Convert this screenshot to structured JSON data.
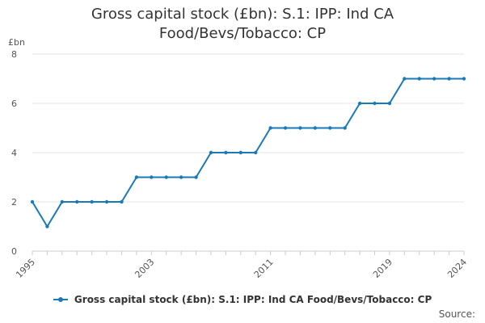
{
  "chart_data": {
    "type": "line",
    "title_lines": [
      "Gross capital stock (£bn): S.1: IPP: Ind CA",
      "Food/Bevs/Tobacco: CP"
    ],
    "ylabel": "£bn",
    "xlabel": "",
    "ylim": [
      0,
      8
    ],
    "yticks": [
      0,
      2,
      4,
      6,
      8
    ],
    "xlim": [
      1995,
      2024
    ],
    "xtick_labels": [
      "1995",
      "2003",
      "2011",
      "2019",
      "2024"
    ],
    "grid": true,
    "legend_position": "bottom",
    "series": [
      {
        "name": "Gross capital stock (£bn): S.1: IPP: Ind CA Food/Bevs/Tobacco: CP",
        "color": "#1a7ab7",
        "x": [
          1995,
          1996,
          1997,
          1998,
          1999,
          2000,
          2001,
          2002,
          2003,
          2004,
          2005,
          2006,
          2007,
          2008,
          2009,
          2010,
          2011,
          2012,
          2013,
          2014,
          2015,
          2016,
          2017,
          2018,
          2019,
          2020,
          2021,
          2022,
          2023,
          2024
        ],
        "values": [
          2,
          1,
          2,
          2,
          2,
          2,
          2,
          3,
          3,
          3,
          3,
          3,
          4,
          4,
          4,
          4,
          5,
          5,
          5,
          5,
          5,
          5,
          6,
          6,
          6,
          7,
          7,
          7,
          7,
          7
        ]
      }
    ],
    "source_label": "Source:"
  }
}
